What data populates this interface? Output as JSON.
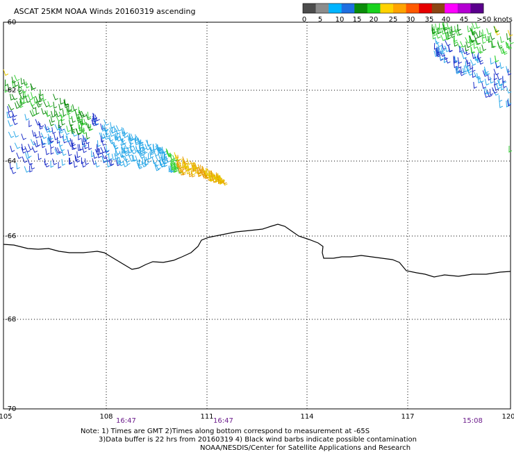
{
  "title": "ASCAT 25KM NOAA Winds 20160319 ascending",
  "legend": {
    "labels": [
      "0",
      "5",
      "10",
      "15",
      "20",
      "25",
      "30",
      "35",
      "40",
      "45",
      ">50 knots"
    ],
    "colors": [
      "#4c4c4c",
      "#8c8c8c",
      "#00b4ff",
      "#1f6fe0",
      "#0a8c0a",
      "#19d21e",
      "#ffd200",
      "#ffa300",
      "#ff5a00",
      "#e60000",
      "#8b4513",
      "#ff00ff",
      "#b400d2",
      "#5a008c"
    ]
  },
  "axes": {
    "lat_labels": [
      "-60",
      "-62",
      "-64",
      "-66",
      "-68",
      "-70"
    ],
    "lon_labels": [
      "105",
      "108",
      "111",
      "114",
      "117",
      "120"
    ]
  },
  "times": [
    "16:47",
    "16:47",
    "15:08"
  ],
  "notes": [
    "Note: 1) Times are GMT 2)Times along bottom correspond to measurement at -65S",
    "3)Data buffer is 22 hrs from 20160319 4) Black wind barbs indicate possible contamination",
    "NOAA/NESDIS/Center for Satellite Applications and Research"
  ],
  "colors": {
    "time_text": "#6a1a8a",
    "coastline": "#000000",
    "barb_blue": "#1a2cc8",
    "barb_cyan": "#2aa8e8",
    "barb_green": "#0b8a0b",
    "barb_lightgreen": "#3ad23a",
    "barb_yellow": "#e8c800",
    "barb_orange": "#e89a00"
  }
}
